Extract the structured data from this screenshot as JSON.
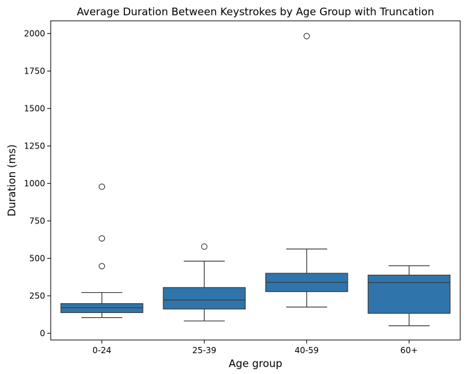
{
  "chart_data": {
    "type": "box",
    "title": "Average Duration Between Keystrokes by Age Group with Truncation",
    "xlabel": "Age group",
    "ylabel": "Duration (ms)",
    "ylim": [
      -45,
      2085
    ],
    "yticks": [
      0,
      250,
      500,
      750,
      1000,
      1250,
      1500,
      1750,
      2000
    ],
    "ytick_labels": [
      "0",
      "250",
      "500",
      "750",
      "1000",
      "1250",
      "1500",
      "1750",
      "2000"
    ],
    "grid": false,
    "box_color": "#2f75ac",
    "line_color": "#3d3d3d",
    "categories": [
      "0-24",
      "25-39",
      "40-59",
      "60+"
    ],
    "boxes": [
      {
        "label": "0-24",
        "whisker_low": 105,
        "q1": 138,
        "median": 170,
        "q3": 198,
        "whisker_high": 272,
        "outliers": [
          978,
          633,
          448
        ]
      },
      {
        "label": "25-39",
        "whisker_low": 82,
        "q1": 162,
        "median": 222,
        "q3": 305,
        "whisker_high": 481,
        "outliers": [
          578
        ]
      },
      {
        "label": "40-59",
        "whisker_low": 175,
        "q1": 278,
        "median": 340,
        "q3": 400,
        "whisker_high": 562,
        "outliers": [
          1983
        ]
      },
      {
        "label": "60+",
        "whisker_low": 50,
        "q1": 133,
        "median": 338,
        "q3": 388,
        "whisker_high": 451,
        "outliers": []
      }
    ]
  }
}
